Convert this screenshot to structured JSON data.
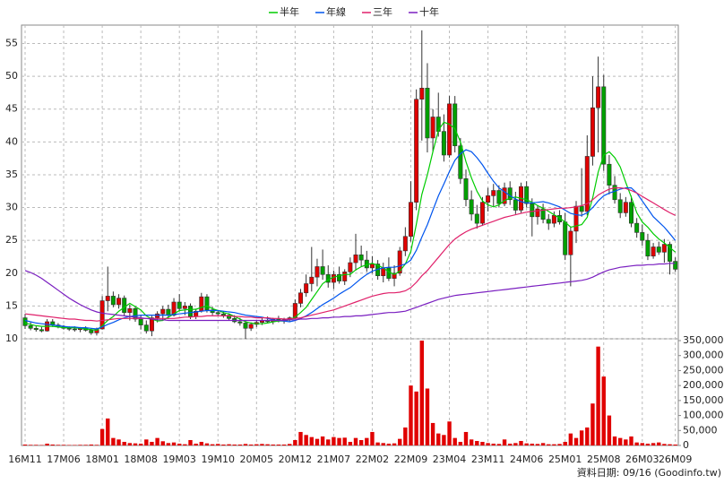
{
  "chart_data": {
    "type": "candlestick",
    "categories": [
      "16M11",
      null,
      null,
      null,
      null,
      null,
      null,
      "17M06",
      null,
      null,
      null,
      null,
      null,
      null,
      "18M01",
      null,
      null,
      null,
      null,
      null,
      null,
      "18M08",
      null,
      null,
      null,
      null,
      null,
      null,
      "19M03",
      null,
      null,
      null,
      null,
      null,
      null,
      "19M10",
      null,
      null,
      null,
      null,
      null,
      null,
      "20M05",
      null,
      null,
      null,
      null,
      null,
      null,
      "20M12",
      null,
      null,
      null,
      null,
      null,
      null,
      "21M07",
      null,
      null,
      null,
      null,
      null,
      null,
      "22M02",
      null,
      null,
      null,
      null,
      null,
      null,
      "22M09",
      null,
      null,
      null,
      null,
      null,
      null,
      "23M04",
      null,
      null,
      null,
      null,
      null,
      null,
      "23M11",
      null,
      null,
      null,
      null,
      null,
      null,
      "24M06",
      null,
      null,
      null,
      null,
      null,
      null,
      "25M01",
      null,
      null,
      null,
      null,
      null,
      null,
      "25M08",
      null,
      null,
      null,
      null,
      null,
      null,
      "26M03",
      null,
      null,
      null,
      null,
      null,
      "26M09"
    ],
    "open": [
      13.2,
      12.0,
      11.6,
      11.4,
      11.2,
      12.6,
      12.1,
      11.8,
      11.6,
      11.5,
      11.4,
      11.6,
      11.3,
      10.9,
      11.5,
      15.8,
      16.5,
      15.2,
      16.2,
      14.0,
      14.6,
      13.0,
      12.1,
      11.2,
      13.2,
      13.8,
      14.5,
      13.6,
      15.6,
      14.6,
      15.0,
      13.4,
      14.2,
      16.4,
      14.4,
      14.0,
      13.8,
      13.6,
      13.1,
      12.6,
      12.4,
      11.6,
      12.2,
      12.5,
      12.8,
      12.6,
      13.0,
      12.7,
      12.9,
      13.2,
      15.4,
      17.0,
      18.4,
      19.4,
      21.0,
      19.8,
      18.6,
      19.8,
      18.8,
      20.2,
      21.6,
      22.8,
      22.0,
      20.8,
      21.4,
      19.6,
      20.8,
      19.2,
      20.0,
      23.4,
      25.6,
      30.8,
      46.5,
      48.2,
      40.6,
      43.8,
      41.6,
      38.0,
      45.8,
      39.4,
      34.4,
      31.2,
      29.0,
      27.6,
      30.8,
      31.8,
      32.6,
      30.6,
      33.0,
      31.2,
      29.6,
      33.2,
      30.6,
      28.6,
      29.8,
      28.2,
      27.6,
      28.8,
      27.8,
      22.8,
      26.4,
      30.2,
      29.4,
      37.8,
      45.2,
      48.4,
      36.6,
      33.4,
      31.2,
      29.2,
      30.8,
      27.6,
      26.2,
      25.0,
      22.6,
      24.0,
      23.2,
      24.4,
      21.8
    ],
    "high": [
      13.8,
      12.5,
      12.0,
      11.8,
      13.0,
      13.0,
      12.4,
      12.1,
      11.9,
      11.9,
      11.8,
      11.9,
      11.6,
      11.7,
      16.5,
      21.0,
      17.2,
      16.8,
      16.6,
      15.2,
      15.0,
      13.6,
      12.8,
      13.5,
      14.2,
      15.0,
      15.2,
      16.2,
      16.8,
      15.6,
      15.4,
      14.6,
      17.0,
      16.8,
      14.9,
      14.4,
      14.2,
      13.9,
      13.6,
      13.2,
      12.8,
      12.5,
      12.9,
      13.3,
      13.4,
      13.2,
      13.5,
      13.2,
      13.4,
      16.0,
      17.6,
      19.8,
      24.0,
      22.2,
      23.6,
      21.2,
      20.4,
      21.0,
      20.6,
      22.4,
      26.0,
      24.2,
      23.4,
      22.6,
      22.0,
      21.6,
      22.4,
      21.2,
      24.0,
      27.0,
      34.0,
      48.0,
      57.0,
      52.0,
      45.0,
      47.5,
      44.2,
      47.0,
      47.0,
      40.6,
      35.8,
      32.6,
      30.4,
      31.6,
      33.0,
      33.6,
      33.4,
      33.8,
      34.0,
      32.4,
      33.8,
      34.0,
      31.4,
      30.4,
      30.6,
      29.0,
      29.4,
      29.6,
      29.2,
      27.0,
      31.0,
      36.0,
      41.0,
      50.0,
      53.0,
      50.2,
      38.0,
      34.8,
      32.2,
      31.6,
      31.8,
      28.4,
      27.4,
      26.0,
      24.6,
      24.8,
      25.2,
      24.8,
      22.4
    ],
    "low": [
      11.5,
      11.3,
      11.1,
      11.0,
      11.1,
      11.8,
      11.6,
      11.4,
      11.2,
      11.1,
      11.0,
      11.1,
      10.6,
      10.5,
      11.4,
      14.2,
      14.8,
      14.6,
      13.5,
      12.8,
      12.6,
      11.4,
      10.8,
      10.4,
      12.5,
      12.8,
      13.0,
      13.4,
      14.2,
      13.6,
      13.0,
      13.0,
      14.0,
      14.0,
      13.6,
      13.5,
      13.2,
      12.8,
      12.4,
      12.0,
      10.0,
      11.2,
      11.8,
      12.1,
      12.4,
      12.2,
      12.5,
      12.3,
      12.6,
      13.0,
      14.8,
      16.4,
      17.2,
      18.0,
      19.0,
      17.8,
      17.6,
      18.4,
      18.2,
      19.4,
      20.4,
      21.0,
      20.2,
      20.0,
      19.0,
      18.6,
      18.8,
      18.0,
      19.6,
      22.6,
      24.8,
      29.6,
      40.2,
      38.4,
      38.6,
      40.8,
      37.0,
      37.6,
      38.4,
      33.6,
      30.2,
      28.0,
      26.8,
      27.2,
      29.4,
      30.2,
      30.0,
      30.2,
      30.4,
      29.0,
      29.2,
      30.0,
      25.6,
      27.4,
      27.6,
      26.6,
      27.0,
      27.4,
      22.0,
      18.0,
      24.6,
      28.6,
      28.8,
      36.4,
      38.4,
      35.6,
      32.0,
      30.6,
      28.4,
      28.6,
      27.0,
      25.4,
      24.2,
      22.0,
      22.2,
      22.8,
      21.6,
      19.8,
      20.2
    ],
    "close": [
      12.0,
      11.6,
      11.4,
      11.2,
      12.6,
      12.1,
      11.8,
      11.6,
      11.5,
      11.4,
      11.6,
      11.3,
      10.9,
      11.5,
      15.8,
      16.5,
      15.2,
      16.2,
      14.0,
      14.6,
      13.0,
      12.1,
      11.2,
      13.2,
      13.8,
      14.5,
      13.6,
      15.6,
      14.6,
      15.0,
      13.4,
      14.2,
      16.4,
      14.4,
      14.0,
      13.8,
      13.6,
      13.1,
      12.6,
      12.4,
      11.6,
      12.2,
      12.5,
      12.8,
      12.6,
      13.0,
      12.7,
      12.9,
      13.2,
      15.4,
      17.0,
      18.4,
      19.4,
      21.0,
      19.8,
      18.6,
      19.8,
      18.8,
      20.2,
      21.6,
      22.8,
      22.0,
      20.8,
      21.4,
      19.6,
      20.8,
      19.2,
      20.0,
      23.4,
      25.6,
      30.8,
      46.5,
      48.2,
      40.6,
      43.8,
      41.6,
      38.0,
      45.8,
      39.4,
      34.4,
      31.2,
      29.0,
      27.6,
      30.8,
      31.8,
      32.6,
      30.6,
      33.0,
      31.2,
      29.6,
      33.2,
      30.6,
      28.6,
      29.8,
      28.2,
      27.6,
      28.8,
      27.8,
      22.8,
      26.4,
      30.2,
      29.4,
      37.8,
      45.2,
      48.4,
      36.6,
      33.4,
      31.2,
      29.2,
      30.8,
      27.6,
      26.2,
      25.0,
      22.6,
      24.0,
      23.2,
      24.4,
      21.8,
      20.6
    ],
    "up_color": "#e00000",
    "down_color": "#00a000",
    "ylim": [
      10,
      57.8
    ],
    "yticks": [
      10,
      15,
      20,
      25,
      30,
      35,
      40,
      45,
      50,
      55
    ],
    "grid": true,
    "series": [
      {
        "name": "半年",
        "color": "#00cc00",
        "values": [
          12.4,
          12.2,
          12.0,
          11.9,
          11.9,
          11.9,
          11.8,
          11.7,
          11.7,
          11.7,
          11.6,
          11.5,
          11.4,
          11.3,
          12.0,
          12.8,
          13.4,
          14.2,
          14.8,
          15.4,
          14.9,
          14.4,
          13.5,
          13.0,
          12.7,
          12.8,
          13.3,
          13.8,
          14.3,
          14.4,
          14.5,
          14.5,
          14.8,
          15.0,
          14.6,
          14.3,
          14.0,
          13.8,
          13.4,
          13.0,
          12.6,
          12.4,
          12.3,
          12.3,
          12.4,
          12.6,
          12.7,
          12.7,
          12.9,
          13.3,
          14.0,
          14.8,
          16.0,
          17.2,
          18.4,
          19.0,
          19.4,
          19.6,
          19.8,
          19.8,
          20.5,
          21.0,
          21.3,
          21.5,
          21.2,
          20.8,
          20.2,
          19.8,
          20.3,
          21.4,
          23.3,
          27.5,
          32.0,
          35.0,
          38.5,
          41.8,
          43.0,
          42.7,
          42.0,
          40.0,
          37.0,
          34.5,
          32.5,
          31.0,
          30.4,
          30.1,
          30.4,
          31.1,
          31.4,
          31.6,
          31.4,
          31.2,
          30.8,
          30.3,
          29.9,
          29.4,
          28.9,
          28.4,
          27.8,
          27.0,
          27.2,
          27.4,
          28.5,
          31.5,
          35.4,
          38.0,
          38.5,
          37.6,
          36.2,
          33.8,
          31.6,
          29.2,
          27.8,
          27.0,
          26.0,
          25.2,
          24.6,
          23.9,
          23.2
        ]
      },
      {
        "name": "年線",
        "color": "#0055ee",
        "values": [
          12.8,
          12.6,
          12.4,
          12.3,
          12.2,
          12.1,
          12.0,
          11.9,
          11.8,
          11.8,
          11.7,
          11.7,
          11.6,
          11.5,
          11.8,
          12.2,
          12.5,
          12.9,
          13.2,
          13.4,
          13.5,
          13.6,
          13.6,
          13.6,
          13.6,
          13.6,
          13.6,
          13.7,
          13.8,
          13.9,
          14.0,
          14.1,
          14.2,
          14.3,
          14.3,
          14.3,
          14.2,
          14.1,
          14.0,
          13.8,
          13.6,
          13.5,
          13.4,
          13.3,
          13.1,
          12.9,
          12.8,
          12.7,
          12.6,
          12.8,
          13.1,
          13.5,
          14.0,
          14.6,
          15.2,
          15.7,
          16.2,
          16.8,
          17.3,
          17.8,
          18.5,
          19.2,
          19.8,
          20.3,
          20.6,
          20.8,
          20.9,
          20.9,
          21.1,
          21.4,
          22.0,
          23.5,
          25.5,
          27.4,
          29.6,
          31.8,
          33.6,
          35.5,
          37.2,
          38.2,
          38.8,
          38.5,
          37.6,
          36.5,
          35.2,
          34.0,
          33.0,
          32.4,
          31.8,
          31.3,
          30.9,
          30.7,
          30.7,
          30.8,
          30.9,
          30.7,
          30.4,
          30.1,
          29.6,
          29.1,
          28.9,
          28.8,
          29.2,
          30.0,
          31.0,
          31.8,
          32.2,
          32.5,
          32.8,
          33.0,
          33.0,
          32.2,
          31.0,
          29.8,
          28.6,
          27.8,
          27.0,
          26.0,
          25.0
        ]
      },
      {
        "name": "三年",
        "color": "#e0206a",
        "values": [
          13.8,
          13.7,
          13.6,
          13.5,
          13.4,
          13.3,
          13.2,
          13.1,
          13.0,
          13.0,
          12.9,
          12.8,
          12.8,
          12.7,
          12.8,
          12.9,
          13.0,
          13.1,
          13.1,
          13.1,
          13.1,
          13.1,
          13.1,
          13.1,
          13.1,
          13.1,
          13.1,
          13.1,
          13.2,
          13.3,
          13.3,
          13.4,
          13.4,
          13.5,
          13.5,
          13.5,
          13.5,
          13.5,
          13.4,
          13.4,
          13.3,
          13.3,
          13.2,
          13.2,
          13.2,
          13.1,
          13.1,
          13.0,
          13.0,
          13.1,
          13.2,
          13.4,
          13.6,
          13.8,
          14.0,
          14.2,
          14.4,
          14.7,
          15.0,
          15.3,
          15.6,
          15.9,
          16.2,
          16.5,
          16.7,
          16.9,
          17.0,
          17.0,
          17.1,
          17.3,
          17.8,
          18.6,
          19.6,
          20.4,
          21.4,
          22.4,
          23.4,
          24.4,
          25.2,
          25.8,
          26.3,
          26.7,
          27.0,
          27.3,
          27.6,
          27.9,
          28.2,
          28.5,
          28.7,
          28.9,
          29.1,
          29.3,
          29.4,
          29.5,
          29.6,
          29.7,
          29.8,
          29.9,
          29.9,
          30.0,
          30.1,
          30.3,
          30.6,
          31.2,
          31.9,
          32.4,
          32.8,
          33.0,
          33.0,
          32.9,
          32.6,
          32.2,
          31.7,
          31.2,
          30.7,
          30.2,
          29.7,
          29.2,
          28.8
        ]
      },
      {
        "name": "十年",
        "color": "#7a1fc0",
        "values": [
          20.4,
          20.1,
          19.7,
          19.2,
          18.6,
          18.0,
          17.4,
          16.8,
          16.2,
          15.7,
          15.2,
          14.8,
          14.4,
          14.1,
          13.9,
          13.8,
          13.7,
          13.6,
          13.5,
          13.4,
          13.3,
          13.2,
          13.1,
          13.0,
          12.9,
          12.9,
          12.8,
          12.8,
          12.8,
          12.8,
          12.8,
          12.8,
          12.8,
          12.8,
          12.8,
          12.8,
          12.8,
          12.8,
          12.8,
          12.8,
          12.8,
          12.8,
          12.8,
          12.8,
          12.8,
          12.8,
          12.8,
          12.8,
          12.9,
          12.9,
          13.0,
          13.0,
          13.1,
          13.1,
          13.2,
          13.2,
          13.3,
          13.3,
          13.4,
          13.4,
          13.5,
          13.5,
          13.6,
          13.7,
          13.8,
          13.9,
          14.0,
          14.0,
          14.1,
          14.2,
          14.5,
          14.8,
          15.1,
          15.4,
          15.7,
          16.0,
          16.2,
          16.4,
          16.6,
          16.7,
          16.8,
          16.9,
          17.0,
          17.1,
          17.2,
          17.3,
          17.4,
          17.5,
          17.6,
          17.7,
          17.8,
          17.9,
          18.0,
          18.1,
          18.2,
          18.3,
          18.4,
          18.5,
          18.6,
          18.7,
          18.8,
          18.9,
          19.1,
          19.4,
          19.8,
          20.2,
          20.5,
          20.7,
          20.9,
          21.0,
          21.1,
          21.2,
          21.2,
          21.3,
          21.3,
          21.4,
          21.4,
          21.5,
          21.5
        ]
      }
    ],
    "volume": {
      "color": "#e00000",
      "values": [
        3000,
        2000,
        2000,
        1500,
        6000,
        3000,
        2000,
        2000,
        1500,
        1500,
        2000,
        2000,
        3000,
        2000,
        55000,
        90000,
        25000,
        20000,
        12000,
        8000,
        7000,
        6000,
        20000,
        12000,
        25000,
        14000,
        8000,
        10000,
        6000,
        4000,
        18000,
        6000,
        12000,
        7000,
        4000,
        5000,
        3000,
        4000,
        3000,
        3000,
        5000,
        3000,
        4000,
        5000,
        4000,
        3000,
        3000,
        3000,
        5000,
        18000,
        45000,
        35000,
        28000,
        22000,
        30000,
        20000,
        28000,
        25000,
        26000,
        12000,
        25000,
        18000,
        25000,
        45000,
        10000,
        8000,
        6000,
        7000,
        22000,
        60000,
        200000,
        180000,
        350000,
        190000,
        75000,
        40000,
        35000,
        80000,
        25000,
        12000,
        45000,
        20000,
        15000,
        12000,
        8000,
        6000,
        5000,
        20000,
        6000,
        8000,
        15000,
        7000,
        6000,
        5000,
        8000,
        4000,
        4000,
        5000,
        12000,
        40000,
        25000,
        50000,
        60000,
        140000,
        330000,
        230000,
        100000,
        30000,
        25000,
        20000,
        30000,
        10000,
        8000,
        6000,
        8000,
        10000,
        5000,
        4000,
        3000
      ],
      "ylim": [
        0,
        356000
      ],
      "yticks": [
        0,
        {
          "value": 50000,
          "label": "50,000"
        },
        {
          "value": 100000,
          "label": "100,000"
        },
        {
          "value": 150000,
          "label": "150,000"
        },
        {
          "value": 200000,
          "label": "200,000"
        },
        {
          "value": 250000,
          "label": "250,000"
        },
        {
          "value": 300000,
          "label": "300,000"
        },
        {
          "value": 350000,
          "label": "350,000"
        }
      ]
    },
    "source": "資料日期: 09/16 (Goodinfo.tw)"
  }
}
